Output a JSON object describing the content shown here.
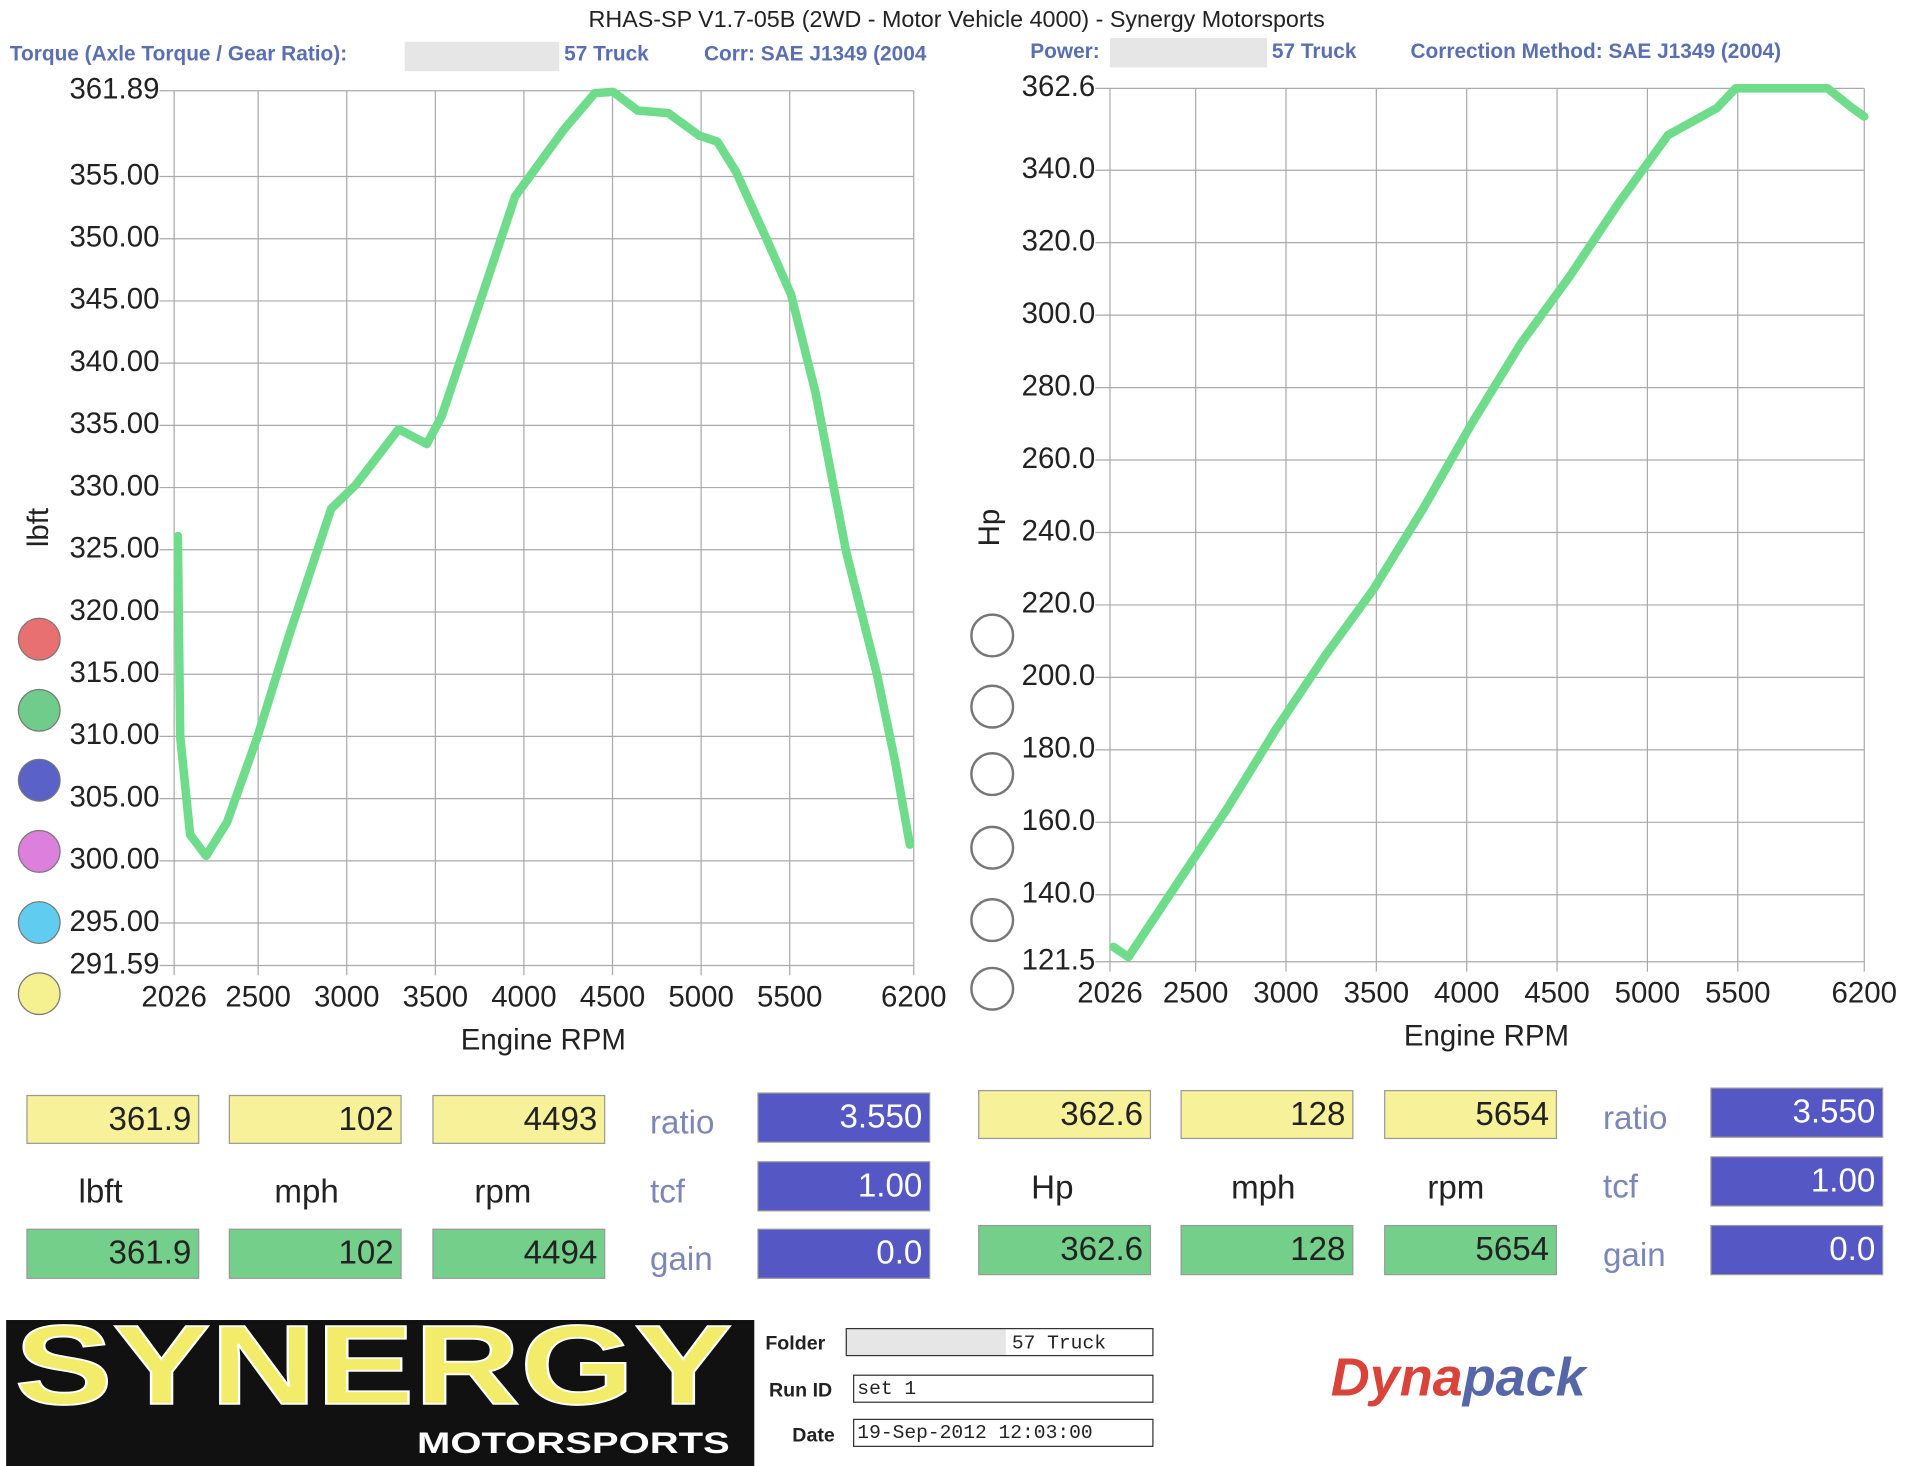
{
  "header": "RHAS-SP V1.7-05B   (2WD - Motor Vehicle 4000) - Synergy Motorsports",
  "chart_data": [
    {
      "type": "line",
      "title": "Torque (Axle Torque / Gear Ratio):",
      "vehicle": "57 Truck",
      "correction": "Corr: SAE J1349 (2004",
      "xlabel": "Engine RPM",
      "ylabel": "lbft",
      "color": "#6fdc8c",
      "grid": true,
      "xlim": [
        2026,
        6200
      ],
      "xticks": [
        2026,
        2500,
        3000,
        3500,
        4000,
        4500,
        5000,
        5500,
        6200
      ],
      "ylim": [
        291.59,
        361.89
      ],
      "yticks": [
        291.59,
        {
          "value": 295,
          "label": "295.00"
        },
        {
          "value": 300,
          "label": "300.00"
        },
        {
          "value": 305,
          "label": "305.00"
        },
        {
          "value": 310,
          "label": "310.00"
        },
        {
          "value": 315,
          "label": "315.00"
        },
        {
          "value": 320,
          "label": "320.00"
        },
        {
          "value": 325,
          "label": "325.00"
        },
        {
          "value": 330,
          "label": "330.00"
        },
        {
          "value": 335,
          "label": "335.00"
        },
        {
          "value": 340,
          "label": "340.00"
        },
        {
          "value": 345,
          "label": "345.00"
        },
        {
          "value": 350,
          "label": "350.00"
        },
        {
          "value": 355,
          "label": "355.00"
        },
        361.89
      ],
      "x": [
        2047,
        2060,
        2116,
        2206,
        2324,
        2497,
        2670,
        2912,
        3050,
        3293,
        3452,
        3535,
        3742,
        3950,
        4227,
        4400,
        4504,
        4642,
        4815,
        4988,
        5092,
        5196,
        5369,
        5508,
        5646,
        5819,
        5992,
        6095,
        6178
      ],
      "values": [
        326.1,
        310,
        302.1,
        300.4,
        303.1,
        310,
        317.9,
        328.3,
        330.2,
        334.7,
        333.5,
        335.7,
        344.5,
        353.4,
        358.8,
        361.7,
        361.8,
        360.3,
        360.1,
        358.3,
        357.8,
        355.4,
        350,
        345.5,
        337.6,
        324.8,
        315,
        308,
        301.3
      ]
    },
    {
      "type": "line",
      "title": "Power:",
      "vehicle": "57 Truck",
      "correction": "Correction Method: SAE J1349 (2004)",
      "xlabel": "Engine RPM",
      "ylabel": "Hp",
      "color": "#6fdc8c",
      "grid": true,
      "xlim": [
        2026,
        6200
      ],
      "xticks": [
        2026,
        2500,
        3000,
        3500,
        4000,
        4500,
        5000,
        5500,
        6200
      ],
      "ylim": [
        121.5,
        362.6
      ],
      "yticks": [
        121.5,
        {
          "value": 140,
          "label": "140.0"
        },
        {
          "value": 160,
          "label": "160.0"
        },
        {
          "value": 180,
          "label": "180.0"
        },
        {
          "value": 200,
          "label": "200.0"
        },
        {
          "value": 220,
          "label": "220.0"
        },
        {
          "value": 240,
          "label": "240.0"
        },
        {
          "value": 260,
          "label": "260.0"
        },
        {
          "value": 280,
          "label": "280.0"
        },
        {
          "value": 300,
          "label": "300.0"
        },
        {
          "value": 320,
          "label": "320.0"
        },
        {
          "value": 340,
          "label": "340.0"
        },
        362.6
      ],
      "x": [
        2046,
        2128,
        2399,
        2671,
        2942,
        3214,
        3485,
        3757,
        4028,
        4300,
        4571,
        4843,
        5114,
        5386,
        5488,
        5725,
        5997,
        6132,
        6200
      ],
      "values": [
        125.6,
        122.8,
        143.2,
        163.5,
        185.5,
        205.8,
        224.4,
        246.4,
        270.1,
        292.2,
        310.8,
        331.1,
        349.7,
        357.2,
        362.6,
        362.6,
        362.6,
        357.2,
        354.8
      ]
    }
  ],
  "readouts": [
    {
      "top": [
        "361.9",
        "102",
        "4493"
      ],
      "units": [
        "lbft",
        "mph",
        "rpm"
      ],
      "bottom": [
        "361.9",
        "102",
        "4494"
      ],
      "labels": [
        "ratio",
        "tcf",
        "gain"
      ],
      "factors": [
        "3.550",
        "1.00",
        "0.0"
      ]
    },
    {
      "top": [
        "362.6",
        "128",
        "5654"
      ],
      "units": [
        "Hp",
        "mph",
        "rpm"
      ],
      "bottom": [
        "362.6",
        "128",
        "5654"
      ],
      "labels": [
        "ratio",
        "tcf",
        "gain"
      ],
      "factors": [
        "3.550",
        "1.00",
        "0.0"
      ]
    }
  ],
  "logo": {
    "name": "SYNERGY",
    "tagline": "MOTORSPORTS"
  },
  "info": {
    "folder_label": "Folder",
    "folder": "57 Truck",
    "run_label": "Run ID",
    "run": "set 1",
    "date_label": "Date",
    "date": "19-Sep-2012  12:03:00"
  },
  "brand": {
    "part1": "Dyna",
    "part2": "pack"
  }
}
